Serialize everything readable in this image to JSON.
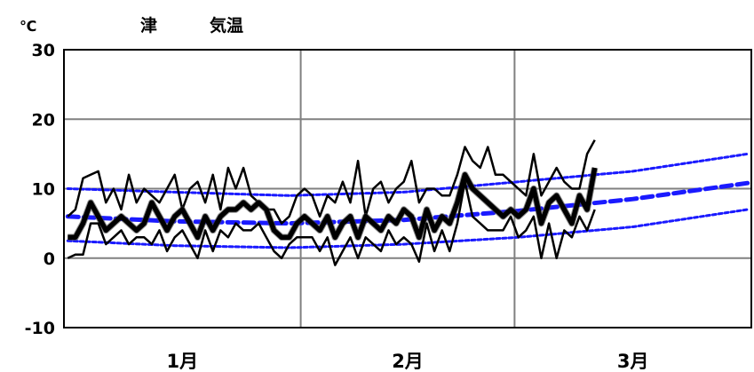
{
  "chart_data": {
    "type": "line",
    "title_station": "津",
    "title_element": "気温",
    "unit": "℃",
    "ylim": [
      -10,
      30
    ],
    "y_ticks": [
      "30",
      "20",
      "10",
      "0",
      "-10"
    ],
    "y_tick_values": [
      30,
      20,
      10,
      0,
      -10
    ],
    "months": [
      "1月",
      "2月",
      "3月"
    ],
    "days_per_month": [
      31,
      28,
      31
    ],
    "observed_days": 70,
    "grid": true,
    "colors": {
      "observed": "#000000",
      "observed_outline": "#444444",
      "normal": "#1a1aff",
      "grid": "#808080",
      "axis": "#000000"
    },
    "series": [
      {
        "role": "daily_max",
        "values": [
          6,
          7,
          11.5,
          12,
          12.5,
          8,
          10,
          7,
          12,
          8,
          10,
          9,
          8,
          10,
          12,
          7,
          10,
          11,
          8,
          12,
          7,
          13,
          10,
          13,
          9,
          8,
          7,
          7,
          5,
          6,
          9,
          10,
          9,
          6,
          9,
          8,
          11,
          8,
          14,
          6,
          10,
          11,
          8,
          10,
          11,
          14,
          8,
          10,
          10,
          9,
          9,
          12,
          16,
          14,
          13,
          16,
          12,
          12,
          11,
          10,
          9,
          15,
          9,
          11,
          13,
          11,
          10,
          10,
          15,
          17
        ]
      },
      {
        "role": "daily_mean",
        "values": [
          3,
          3,
          5,
          8,
          6,
          4,
          5,
          6,
          5,
          4,
          5,
          8,
          6,
          4,
          6,
          7,
          5,
          3,
          6,
          4,
          6,
          7,
          7,
          8,
          7,
          8,
          7,
          4,
          3,
          3,
          5,
          6,
          5,
          4,
          6,
          3,
          5,
          6,
          3,
          6,
          5,
          4,
          6,
          5,
          7,
          6,
          3,
          7,
          4,
          6,
          5,
          8,
          12,
          10,
          9,
          8,
          7,
          6,
          7,
          6,
          7,
          10,
          5,
          8,
          9,
          7,
          5,
          9,
          7,
          13
        ]
      },
      {
        "role": "daily_min",
        "values": [
          0,
          0.5,
          0.5,
          5,
          5,
          2,
          3,
          4,
          2,
          3,
          3,
          2,
          4,
          1,
          3,
          4,
          2,
          0,
          4,
          1,
          4,
          3,
          5,
          4,
          4,
          5,
          3,
          1,
          0,
          2,
          3,
          3,
          3,
          1,
          3,
          -1,
          1,
          3,
          0,
          3,
          2,
          1,
          4,
          2,
          3,
          2,
          -0.5,
          5,
          1,
          4,
          1,
          5,
          11,
          6,
          5,
          4,
          4,
          4,
          6,
          3,
          4,
          6,
          0,
          5,
          0,
          4,
          3,
          6,
          4,
          7
        ]
      },
      {
        "role": "normal_high",
        "values": [
          [
            1,
            10
          ],
          [
            15,
            9.5
          ],
          [
            30,
            9
          ],
          [
            45,
            9.5
          ],
          [
            60,
            11
          ],
          [
            75,
            12.5
          ],
          [
            90,
            15
          ]
        ]
      },
      {
        "role": "normal_mean",
        "values": [
          [
            1,
            6
          ],
          [
            15,
            5.3
          ],
          [
            30,
            5
          ],
          [
            45,
            5.5
          ],
          [
            60,
            6.8
          ],
          [
            75,
            8.5
          ],
          [
            90,
            10.8
          ]
        ]
      },
      {
        "role": "normal_low",
        "values": [
          [
            1,
            2.5
          ],
          [
            15,
            1.8
          ],
          [
            30,
            1.5
          ],
          [
            45,
            2
          ],
          [
            60,
            3
          ],
          [
            75,
            4.5
          ],
          [
            90,
            7
          ]
        ]
      }
    ]
  }
}
